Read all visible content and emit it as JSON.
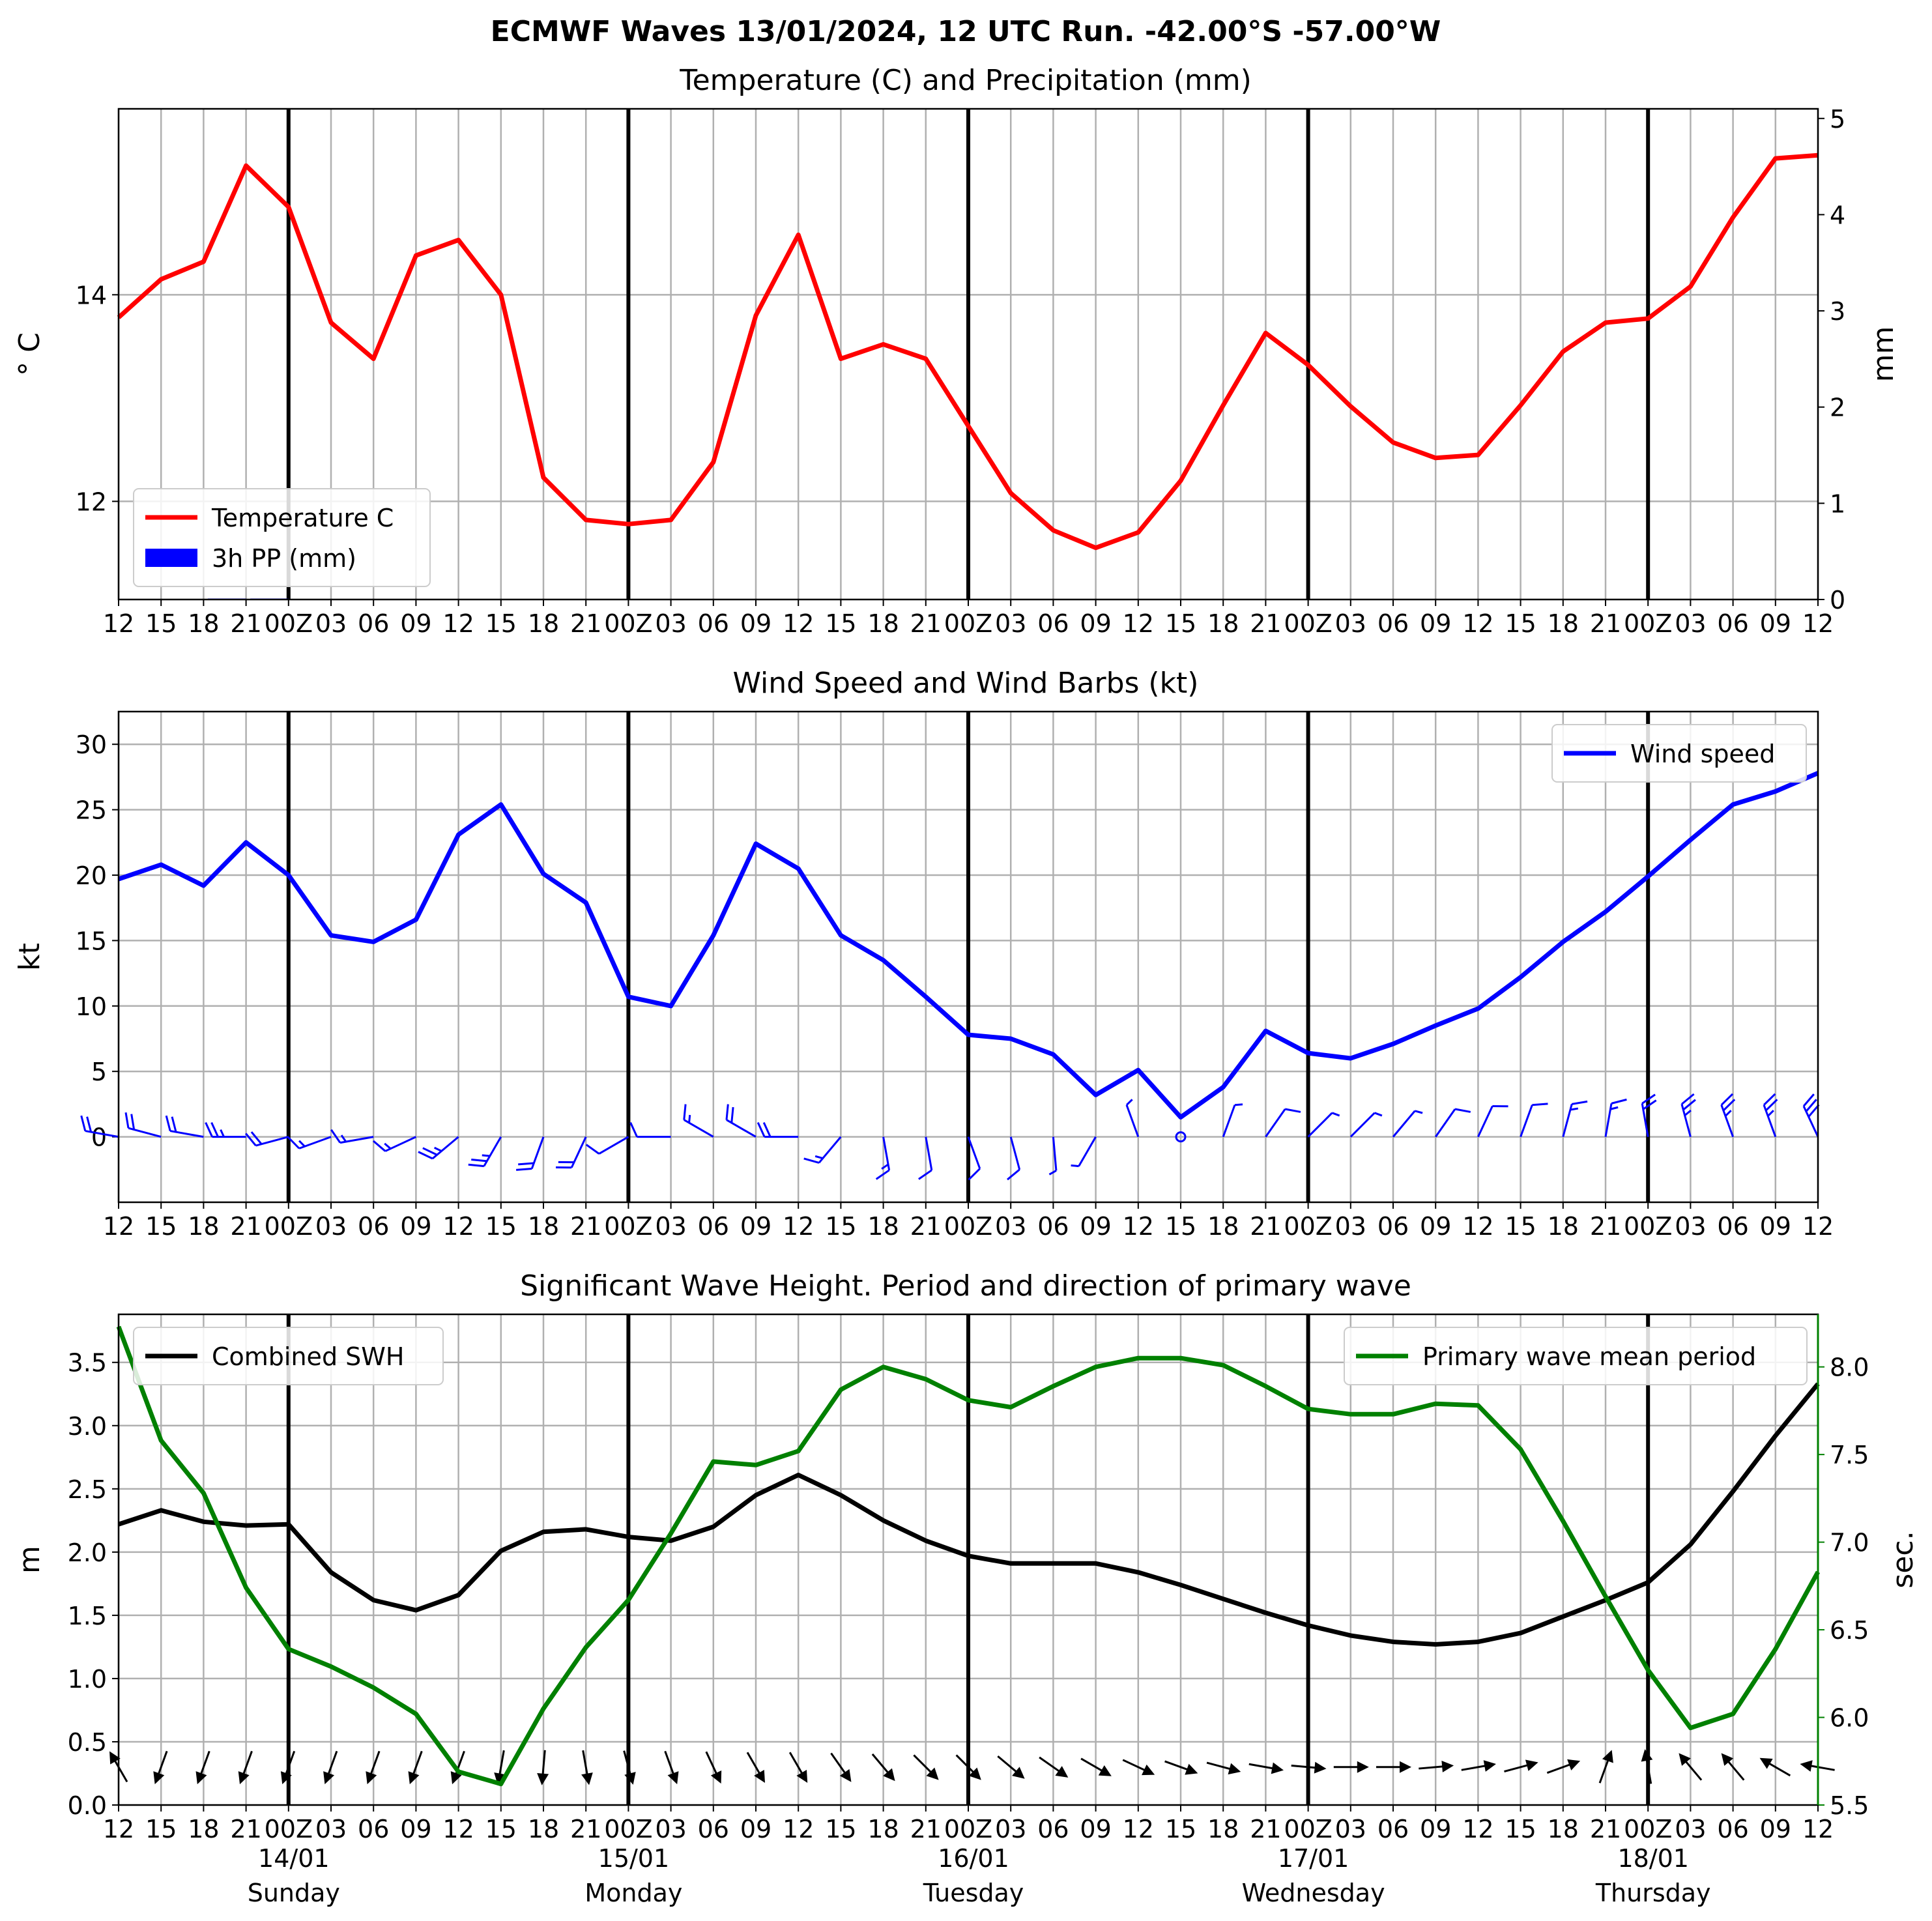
{
  "suptitle": "ECMWF Waves 13/01/2024, 12 UTC Run. -42.00°S -57.00°W",
  "x_tick_labels": [
    "12",
    "15",
    "18",
    "21",
    "00Z",
    "03",
    "06",
    "09",
    "12",
    "15",
    "18",
    "21",
    "00Z",
    "03",
    "06",
    "09",
    "12",
    "15",
    "18",
    "21",
    "00Z",
    "03",
    "06",
    "09",
    "12",
    "15",
    "18",
    "21",
    "00Z",
    "03",
    "06",
    "09",
    "12",
    "15",
    "18",
    "21",
    "00Z",
    "03",
    "06",
    "09",
    "12"
  ],
  "day_labels": [
    {
      "date": "14/01",
      "day": "Sunday"
    },
    {
      "date": "15/01",
      "day": "Monday"
    },
    {
      "date": "16/01",
      "day": "Tuesday"
    },
    {
      "date": "17/01",
      "day": "Wednesday"
    },
    {
      "date": "18/01",
      "day": "Thursday"
    }
  ],
  "colors": {
    "temperature": "#ff0000",
    "precip": "#0000ff",
    "wind": "#0000ff",
    "swh": "#000000",
    "period": "#008000",
    "grid": "#b0b0b0"
  },
  "chart_data": [
    {
      "type": "line",
      "title": "Temperature (C) and Precipitation (mm)",
      "ylabel": "° C",
      "ylabel_right": "mm",
      "ylim": [
        11.05,
        15.8
      ],
      "yticks": [
        12,
        14
      ],
      "ylim_right": [
        0,
        5.1
      ],
      "yticks_right": [
        0,
        1,
        2,
        3,
        4,
        5
      ],
      "legend": "lower-left",
      "grid": true,
      "series": [
        {
          "name": "Temperature C",
          "values": [
            13.78,
            14.15,
            14.32,
            15.25,
            14.85,
            13.73,
            13.38,
            14.38,
            14.53,
            14.0,
            12.23,
            11.82,
            11.78,
            11.82,
            12.38,
            13.8,
            14.58,
            13.38,
            13.52,
            13.38,
            12.73,
            12.08,
            11.72,
            11.55,
            11.7,
            12.2,
            12.93,
            13.63,
            13.32,
            12.92,
            12.57,
            12.42,
            12.45,
            12.93,
            13.45,
            13.73,
            13.77,
            14.08,
            14.75,
            15.32,
            15.35
          ]
        },
        {
          "name": "3h PP (mm)",
          "values": [
            0,
            0,
            0,
            0.01,
            0.01,
            0,
            0,
            0,
            0,
            0,
            0,
            0,
            0,
            0,
            0,
            0,
            0,
            0,
            0,
            0,
            0,
            0,
            0,
            0,
            0,
            0,
            0,
            0,
            0,
            0,
            0,
            0,
            0,
            0,
            0,
            0,
            0,
            0,
            0,
            0,
            0
          ]
        }
      ]
    },
    {
      "type": "line",
      "title": "Wind Speed and Wind Barbs (kt)",
      "ylabel": "kt",
      "ylim": [
        -5,
        32.5
      ],
      "yticks": [
        0,
        5,
        10,
        15,
        20,
        25,
        30
      ],
      "legend": "upper-right",
      "grid": true,
      "series": [
        {
          "name": "Wind speed",
          "values": [
            19.7,
            20.8,
            19.2,
            22.5,
            20.0,
            15.4,
            14.9,
            16.6,
            23.1,
            25.4,
            20.1,
            17.9,
            10.7,
            10.0,
            15.4,
            22.4,
            20.5,
            15.4,
            13.5,
            10.7,
            7.8,
            7.5,
            6.3,
            3.2,
            5.1,
            1.5,
            3.8,
            8.1,
            6.4,
            6.0,
            7.1,
            8.5,
            9.8,
            12.2,
            14.9,
            17.2,
            19.9,
            22.7,
            25.4,
            26.4,
            27.8
          ]
        },
        {
          "name": "Wind barbs",
          "direction_deg": [
            280,
            285,
            280,
            270,
            255,
            250,
            260,
            245,
            230,
            210,
            200,
            205,
            240,
            270,
            300,
            300,
            270,
            220,
            170,
            170,
            160,
            165,
            175,
            210,
            340,
            0,
            20,
            35,
            45,
            45,
            40,
            35,
            25,
            20,
            15,
            10,
            350,
            345,
            340,
            340,
            335
          ]
        }
      ]
    },
    {
      "type": "line",
      "title": "Significant Wave Height. Period and direction of primary wave",
      "ylabel": "m",
      "ylabel_right": "sec.",
      "ylim": [
        0,
        3.88
      ],
      "yticks": [
        0.0,
        0.5,
        1.0,
        1.5,
        2.0,
        2.5,
        3.0,
        3.5
      ],
      "ylim_right": [
        5.5,
        8.3
      ],
      "yticks_right": [
        5.5,
        6.0,
        6.5,
        7.0,
        7.5,
        8.0
      ],
      "legend": "upper-left / upper-right",
      "grid": true,
      "series": [
        {
          "name": "Combined SWH",
          "values": [
            2.22,
            2.33,
            2.24,
            2.21,
            2.22,
            1.84,
            1.62,
            1.54,
            1.66,
            2.01,
            2.16,
            2.18,
            2.12,
            2.09,
            2.2,
            2.45,
            2.61,
            2.45,
            2.25,
            2.09,
            1.97,
            1.91,
            1.91,
            1.91,
            1.84,
            1.74,
            1.63,
            1.52,
            1.42,
            1.34,
            1.29,
            1.27,
            1.29,
            1.36,
            1.49,
            1.62,
            1.76,
            2.06,
            2.48,
            2.92,
            3.33
          ]
        },
        {
          "name": "Primary wave mean period",
          "values": [
            8.23,
            7.58,
            7.28,
            6.74,
            6.39,
            6.29,
            6.17,
            6.02,
            5.69,
            5.62,
            6.05,
            6.4,
            6.67,
            7.05,
            7.46,
            7.44,
            7.52,
            7.87,
            8.0,
            7.93,
            7.81,
            7.77,
            7.89,
            8.0,
            8.05,
            8.05,
            8.01,
            7.89,
            7.76,
            7.73,
            7.73,
            7.79,
            7.78,
            7.53,
            7.12,
            6.69,
            6.27,
            5.94,
            6.02,
            6.39,
            6.83
          ]
        },
        {
          "name": "Primary wave direction",
          "direction_deg": [
            240,
            110,
            110,
            110,
            110,
            110,
            110,
            110,
            110,
            100,
            95,
            80,
            75,
            70,
            65,
            60,
            60,
            55,
            50,
            45,
            45,
            40,
            35,
            30,
            25,
            20,
            15,
            10,
            5,
            0,
            0,
            355,
            350,
            345,
            340,
            290,
            260,
            230,
            230,
            210,
            190
          ]
        }
      ]
    }
  ]
}
